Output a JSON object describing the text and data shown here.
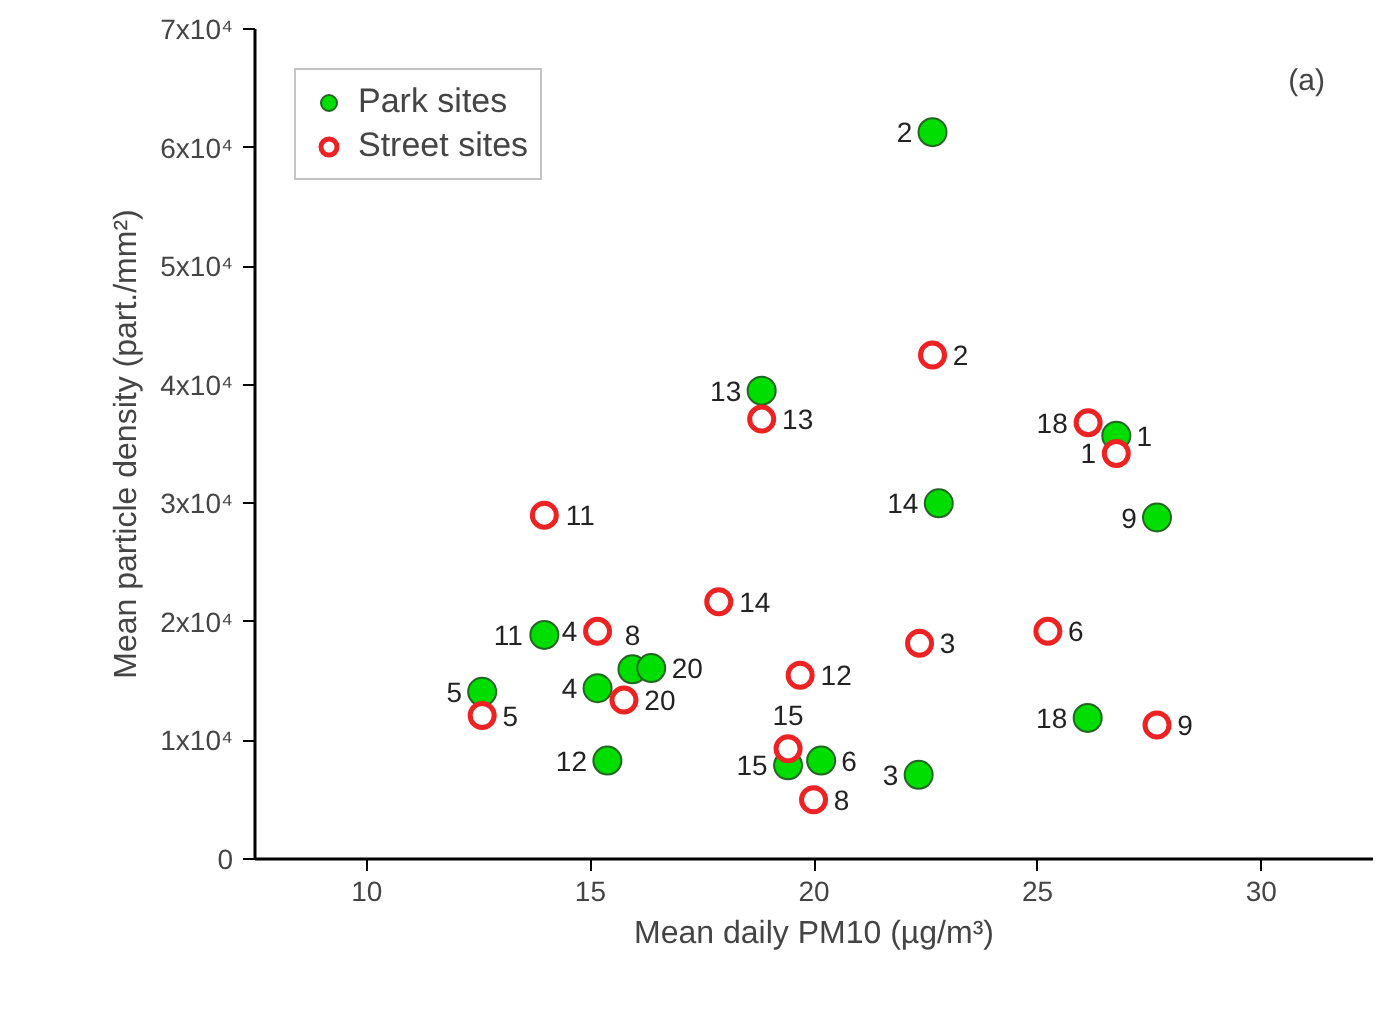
{
  "chart_data": {
    "type": "scatter",
    "xlabel": "Mean daily PM10 (µg/m³)",
    "ylabel": "Mean particle density (part./mm²)",
    "annotations": [
      "(a)",
      {
        "text": "2",
        "x": 22.65,
        "y": 61300
      },
      {
        "text": "13",
        "x": 18.83,
        "y": 39500
      },
      {
        "text": "14",
        "x": 22.79,
        "y": 30000
      },
      {
        "text": "1",
        "x": 26.76,
        "y": 35700
      },
      {
        "text": "9",
        "x": 27.67,
        "y": 28800
      },
      {
        "text": "11",
        "x": 13.97,
        "y": 18900
      },
      {
        "text": "5",
        "x": 12.58,
        "y": 14100
      },
      {
        "text": "4",
        "x": 15.16,
        "y": 14400
      },
      {
        "text": "8",
        "x": 15.94,
        "y": 16000
      },
      {
        "text": "20",
        "x": 16.36,
        "y": 16100
      },
      {
        "text": "12",
        "x": 15.38,
        "y": 8300
      },
      {
        "text": "15",
        "x": 19.42,
        "y": 7900
      },
      {
        "text": "6",
        "x": 20.16,
        "y": 8300
      },
      {
        "text": "3",
        "x": 22.34,
        "y": 7100
      },
      {
        "text": "18",
        "x": 26.12,
        "y": 11900
      },
      {
        "text": "2",
        "x": 22.65,
        "y": 42500
      },
      {
        "text": "13",
        "x": 18.83,
        "y": 37100
      },
      {
        "text": "18",
        "x": 26.13,
        "y": 36800
      },
      {
        "text": "1",
        "x": 26.76,
        "y": 34200
      },
      {
        "text": "11",
        "x": 13.97,
        "y": 29000
      },
      {
        "text": "14",
        "x": 17.87,
        "y": 21700
      },
      {
        "text": "4",
        "x": 15.16,
        "y": 19200
      },
      {
        "text": "5",
        "x": 12.58,
        "y": 12100
      },
      {
        "text": "20",
        "x": 15.75,
        "y": 13400
      },
      {
        "text": "3",
        "x": 22.36,
        "y": 18200
      },
      {
        "text": "6",
        "x": 25.23,
        "y": 19200
      },
      {
        "text": "12",
        "x": 19.69,
        "y": 15500
      },
      {
        "text": "15",
        "x": 19.42,
        "y": 9300
      },
      {
        "text": "8",
        "x": 19.99,
        "y": 5000
      },
      {
        "text": "9",
        "x": 27.67,
        "y": 11300
      }
    ],
    "xlim": [
      7.5,
      32.5
    ],
    "xticks": [
      10,
      15,
      20,
      25,
      30
    ],
    "ylim": [
      0,
      70000
    ],
    "yticks": [
      {
        "value": 0,
        "label": "0"
      },
      {
        "value": 10000,
        "label": "1x10⁴"
      },
      {
        "value": 20000,
        "label": "2x10⁴"
      },
      {
        "value": 30000,
        "label": "3x10⁴"
      },
      {
        "value": 40000,
        "label": "4x10⁴"
      },
      {
        "value": 50000,
        "label": "5x10⁴"
      },
      {
        "value": 60000,
        "label": "6x10⁴"
      },
      {
        "value": 70000,
        "label": "7x10⁴"
      }
    ],
    "grid": false,
    "legend": "top left",
    "marker": "circle",
    "series": [
      {
        "name": "Park sites",
        "color": "#00dd00",
        "x": [
          22.65,
          18.83,
          22.79,
          26.76,
          27.67,
          13.97,
          12.58,
          15.16,
          15.94,
          16.36,
          15.38,
          19.42,
          20.16,
          22.34,
          26.12
        ],
        "values": [
          61300,
          39500,
          30000,
          35700,
          28800,
          18900,
          14100,
          14400,
          16000,
          16100,
          8300,
          7900,
          8300,
          7100,
          11900
        ]
      },
      {
        "name": "Street sites",
        "color": "#ee2222",
        "x": [
          22.65,
          18.83,
          26.13,
          26.76,
          13.97,
          17.87,
          15.16,
          12.58,
          15.75,
          22.36,
          25.23,
          19.69,
          19.42,
          19.99,
          27.67
        ],
        "values": [
          42500,
          37100,
          36800,
          34200,
          29000,
          21700,
          19200,
          12100,
          13400,
          18200,
          19200,
          15500,
          9300,
          5000,
          11300
        ]
      }
    ]
  }
}
